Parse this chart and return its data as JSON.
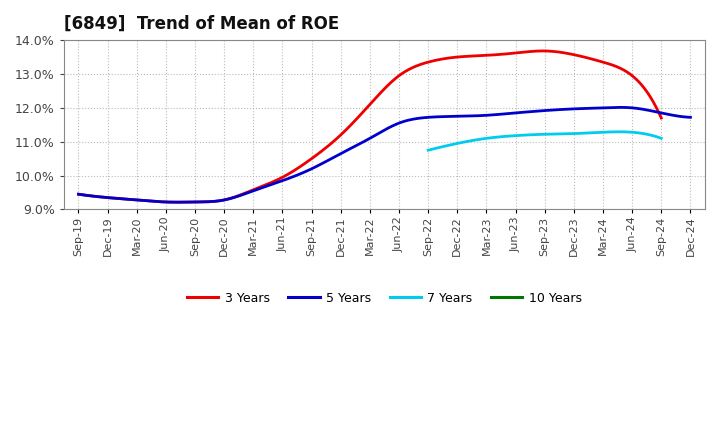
{
  "title": "[6849]  Trend of Mean of ROE",
  "ylim": [
    9.0,
    14.0
  ],
  "yticks": [
    9.0,
    10.0,
    11.0,
    12.0,
    13.0,
    14.0
  ],
  "background_color": "#ffffff",
  "grid_color": "#bbbbbb",
  "x_labels": [
    "Sep-19",
    "Dec-19",
    "Mar-20",
    "Jun-20",
    "Sep-20",
    "Dec-20",
    "Mar-21",
    "Jun-21",
    "Sep-21",
    "Dec-21",
    "Mar-22",
    "Jun-22",
    "Sep-22",
    "Dec-22",
    "Mar-23",
    "Jun-23",
    "Sep-23",
    "Dec-23",
    "Mar-24",
    "Jun-24",
    "Sep-24",
    "Dec-24"
  ],
  "series": {
    "3 Years": {
      "color": "#ee0000",
      "values": [
        9.45,
        9.35,
        9.28,
        9.22,
        9.22,
        9.28,
        9.58,
        9.95,
        10.5,
        11.2,
        12.1,
        12.95,
        13.35,
        13.5,
        13.55,
        13.62,
        13.68,
        13.57,
        13.35,
        12.95,
        11.7,
        null
      ]
    },
    "5 Years": {
      "color": "#0000cc",
      "values": [
        9.45,
        9.35,
        9.28,
        9.22,
        9.22,
        9.28,
        9.55,
        9.85,
        10.2,
        10.65,
        11.1,
        11.55,
        11.72,
        11.75,
        11.78,
        11.85,
        11.92,
        11.97,
        12.0,
        12.0,
        11.85,
        11.72
      ]
    },
    "7 Years": {
      "color": "#00ccee",
      "values": [
        null,
        null,
        null,
        null,
        null,
        null,
        null,
        null,
        null,
        null,
        null,
        null,
        10.75,
        10.95,
        11.1,
        11.18,
        11.22,
        11.24,
        11.28,
        11.28,
        11.1,
        null
      ]
    },
    "10 Years": {
      "color": "#007700",
      "values": [
        null,
        null,
        null,
        null,
        null,
        null,
        null,
        null,
        null,
        null,
        null,
        null,
        null,
        null,
        null,
        null,
        null,
        null,
        null,
        null,
        null,
        null
      ]
    }
  },
  "legend_labels": [
    "3 Years",
    "5 Years",
    "7 Years",
    "10 Years"
  ],
  "legend_colors": [
    "#ee0000",
    "#0000cc",
    "#00ccee",
    "#007700"
  ],
  "title_fontsize": 12,
  "tick_fontsize": 8,
  "line_width": 2.0
}
